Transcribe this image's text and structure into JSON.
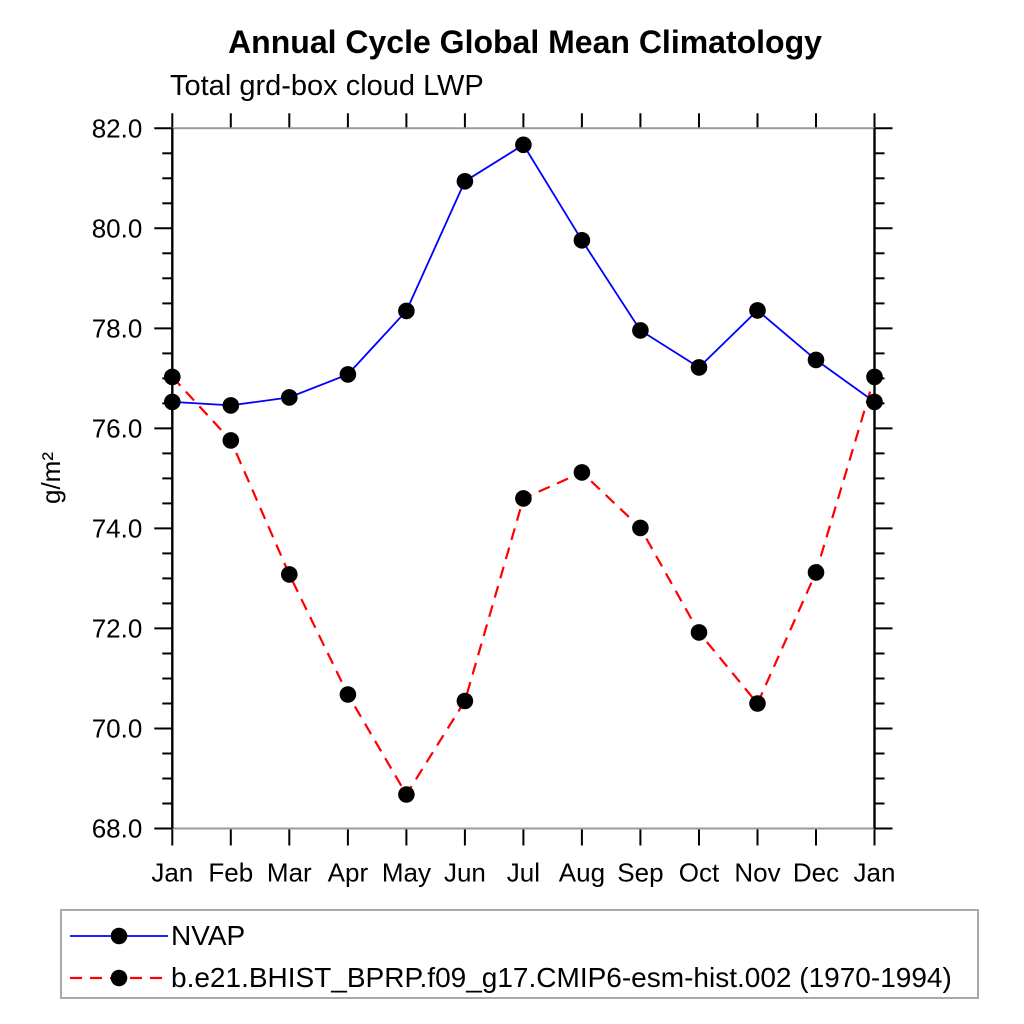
{
  "title": "Annual Cycle Global Mean Climatology",
  "subtitle": "Total grd-box cloud LWP",
  "chart_data": {
    "type": "line",
    "title": "Annual Cycle Global Mean Climatology",
    "subtitle": "Total grd-box cloud LWP",
    "ylabel": "g/m²",
    "xlabel": "",
    "categories": [
      "Jan",
      "Feb",
      "Mar",
      "Apr",
      "May",
      "Jun",
      "Jul",
      "Aug",
      "Sep",
      "Oct",
      "Nov",
      "Dec",
      "Jan"
    ],
    "ylim": [
      68.0,
      82.0
    ],
    "ytick_interval": 2.0,
    "yminor_interval": 0.5,
    "ytick_labels": [
      "68.0",
      "70.0",
      "72.0",
      "74.0",
      "76.0",
      "78.0",
      "80.0",
      "82.0"
    ],
    "grid": "off",
    "legend_position": "bottom-left-box",
    "marker": {
      "shape": "filled-circle",
      "color": "#000000",
      "radius": 8.3
    },
    "series": [
      {
        "name": "NVAP",
        "color": "#0000ff",
        "line_style": "solid",
        "values": [
          76.53,
          76.46,
          76.62,
          77.08,
          78.35,
          80.94,
          81.67,
          79.76,
          77.96,
          77.22,
          78.36,
          77.37,
          76.53
        ]
      },
      {
        "name": "b.e21.BHIST_BPRP.f09_g17.CMIP6-esm-hist.002 (1970-1994)",
        "color": "#ff0000",
        "line_style": "dashed",
        "values": [
          77.03,
          75.76,
          73.08,
          70.68,
          68.68,
          70.55,
          74.6,
          75.12,
          74.01,
          71.92,
          70.5,
          73.12,
          77.03
        ]
      }
    ],
    "frame_colors": {
      "top_bottom": "#9a9a9a",
      "left_right": "#000000",
      "tick": "#000000",
      "legend_border": "#a9a9a9"
    }
  }
}
